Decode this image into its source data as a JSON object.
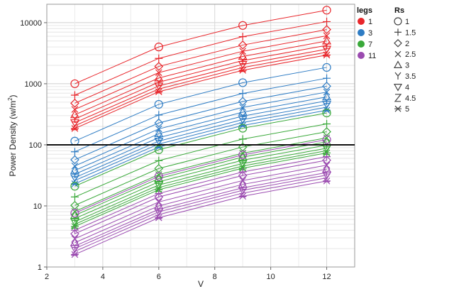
{
  "chart_data": {
    "type": "line",
    "xlabel": "V",
    "ylabel": "Power Density (w/m²)",
    "xlim": [
      2,
      13
    ],
    "ylim": [
      1,
      20000
    ],
    "yscale": "log",
    "xticks": [
      "2",
      "4",
      "6",
      "8",
      "10",
      "12"
    ],
    "yticks": [
      "1",
      "10",
      "100",
      "1000",
      "10000"
    ],
    "grid": true,
    "reference_line": {
      "y": 100
    },
    "x": [
      3,
      6,
      9,
      12
    ],
    "legs_legend": {
      "title": "legs",
      "entries": [
        {
          "label": "1",
          "color": "#e8262b"
        },
        {
          "label": "3",
          "color": "#2e7cc4"
        },
        {
          "label": "7",
          "color": "#3aa93a"
        },
        {
          "label": "11",
          "color": "#9b4bb0"
        }
      ]
    },
    "rs_legend": {
      "title": "Rs",
      "entries": [
        {
          "label": "1",
          "marker": "circle"
        },
        {
          "label": "1.5",
          "marker": "plus"
        },
        {
          "label": "2",
          "marker": "diamond"
        },
        {
          "label": "2.5",
          "marker": "x"
        },
        {
          "label": "3",
          "marker": "triangle-up"
        },
        {
          "label": "3.5",
          "marker": "y"
        },
        {
          "label": "4",
          "marker": "triangle-down"
        },
        {
          "label": "4.5",
          "marker": "z"
        },
        {
          "label": "5",
          "marker": "asterisk"
        }
      ]
    },
    "series": [
      {
        "legs": "1",
        "rs": "1",
        "values": [
          1000,
          4000,
          9000,
          16000
        ]
      },
      {
        "legs": "1",
        "rs": "1.5",
        "values": [
          650,
          2600,
          5900,
          10400
        ]
      },
      {
        "legs": "1",
        "rs": "2",
        "values": [
          480,
          1920,
          4300,
          7700
        ]
      },
      {
        "legs": "1",
        "rs": "2.5",
        "values": [
          380,
          1520,
          3400,
          6100
        ]
      },
      {
        "legs": "1",
        "rs": "3",
        "values": [
          310,
          1240,
          2800,
          5000
        ]
      },
      {
        "legs": "1",
        "rs": "3.5",
        "values": [
          265,
          1060,
          2390,
          4250
        ]
      },
      {
        "legs": "1",
        "rs": "4",
        "values": [
          230,
          920,
          2070,
          3680
        ]
      },
      {
        "legs": "1",
        "rs": "4.5",
        "values": [
          205,
          820,
          1840,
          3280
        ]
      },
      {
        "legs": "1",
        "rs": "5",
        "values": [
          185,
          740,
          1660,
          2950
        ]
      },
      {
        "legs": "3",
        "rs": "1",
        "values": [
          115,
          460,
          1040,
          1850
        ]
      },
      {
        "legs": "3",
        "rs": "1.5",
        "values": [
          77,
          308,
          693,
          1230
        ]
      },
      {
        "legs": "3",
        "rs": "2",
        "values": [
          57,
          228,
          513,
          912
        ]
      },
      {
        "legs": "3",
        "rs": "2.5",
        "values": [
          45,
          182,
          410,
          730
        ]
      },
      {
        "legs": "3",
        "rs": "3",
        "values": [
          38,
          152,
          342,
          608
        ]
      },
      {
        "legs": "3",
        "rs": "3.5",
        "values": [
          33,
          131,
          295,
          525
        ]
      },
      {
        "legs": "3",
        "rs": "4",
        "values": [
          29,
          115,
          259,
          460
        ]
      },
      {
        "legs": "3",
        "rs": "4.5",
        "values": [
          26,
          103,
          232,
          412
        ]
      },
      {
        "legs": "3",
        "rs": "5",
        "values": [
          23,
          92,
          207,
          368
        ]
      },
      {
        "legs": "7",
        "rs": "1",
        "values": [
          21,
          83,
          187,
          332
        ]
      },
      {
        "legs": "7",
        "rs": "1.5",
        "values": [
          14,
          55,
          124,
          220
        ]
      },
      {
        "legs": "7",
        "rs": "2",
        "values": [
          10.2,
          41,
          92,
          164
        ]
      },
      {
        "legs": "7",
        "rs": "2.5",
        "values": [
          8.1,
          32.5,
          73,
          130
        ]
      },
      {
        "legs": "7",
        "rs": "3",
        "values": [
          7.0,
          28,
          63,
          112
        ]
      },
      {
        "legs": "7",
        "rs": "3.5",
        "values": [
          6.2,
          24.8,
          56,
          99
        ]
      },
      {
        "legs": "7",
        "rs": "4",
        "values": [
          5.5,
          22,
          49.5,
          88
        ]
      },
      {
        "legs": "7",
        "rs": "4.5",
        "values": [
          5.0,
          20,
          45,
          80
        ]
      },
      {
        "legs": "7",
        "rs": "5",
        "values": [
          4.6,
          18.4,
          41.4,
          73.6
        ]
      },
      {
        "legs": "11",
        "rs": "1",
        "values": [
          7.6,
          30.4,
          68.4,
          121.6
        ]
      },
      {
        "legs": "11",
        "rs": "1.5",
        "values": [
          4.0,
          16,
          36,
          64
        ]
      },
      {
        "legs": "11",
        "rs": "2",
        "values": [
          3.5,
          14,
          31.5,
          56
        ]
      },
      {
        "legs": "11",
        "rs": "2.5",
        "values": [
          2.9,
          11.6,
          26,
          46.4
        ]
      },
      {
        "legs": "11",
        "rs": "3",
        "values": [
          2.5,
          10,
          22.5,
          40
        ]
      },
      {
        "legs": "11",
        "rs": "3.5",
        "values": [
          2.2,
          8.8,
          19.8,
          35.2
        ]
      },
      {
        "legs": "11",
        "rs": "4",
        "values": [
          2.0,
          8.0,
          18,
          32
        ]
      },
      {
        "legs": "11",
        "rs": "4.5",
        "values": [
          1.8,
          7.2,
          16.2,
          28.8
        ]
      },
      {
        "legs": "11",
        "rs": "5",
        "values": [
          1.6,
          6.4,
          14.4,
          25.6
        ]
      }
    ]
  }
}
